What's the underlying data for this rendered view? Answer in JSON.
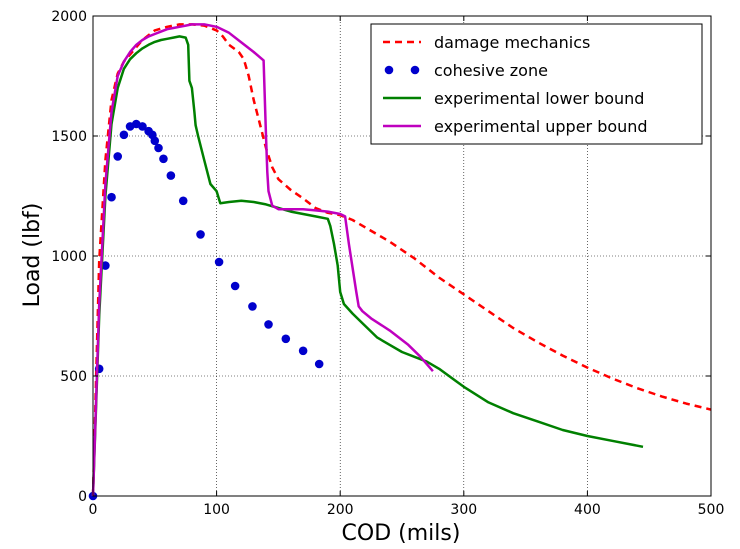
{
  "chart_data": {
    "type": "line",
    "xlabel": "COD (mils)",
    "ylabel": "Load (lbf)",
    "xlim": [
      0,
      500
    ],
    "ylim": [
      0,
      2000
    ],
    "xticks": [
      0,
      100,
      200,
      300,
      400,
      500
    ],
    "yticks": [
      0,
      500,
      1000,
      1500,
      2000
    ],
    "grid": true,
    "legend_position": "top-right",
    "series": [
      {
        "name": "damage mechanics",
        "style": "dashed",
        "marker": "none",
        "color": "#ff0000",
        "x": [
          0,
          5,
          10,
          15,
          20,
          25,
          30,
          40,
          50,
          60,
          70,
          80,
          90,
          100,
          105,
          110,
          118,
          122,
          126,
          130,
          135,
          140,
          145,
          150,
          160,
          170,
          180,
          190,
          200,
          210,
          220,
          240,
          260,
          280,
          300,
          320,
          340,
          360,
          380,
          400,
          420,
          440,
          460,
          480,
          500
        ],
        "y": [
          0,
          980,
          1400,
          1650,
          1760,
          1810,
          1840,
          1900,
          1940,
          1955,
          1965,
          1965,
          1960,
          1940,
          1915,
          1880,
          1850,
          1820,
          1750,
          1650,
          1550,
          1450,
          1370,
          1320,
          1275,
          1240,
          1200,
          1180,
          1170,
          1150,
          1120,
          1060,
          990,
          910,
          840,
          770,
          700,
          640,
          585,
          535,
          490,
          450,
          415,
          385,
          360
        ]
      },
      {
        "name": "cohesive zone",
        "style": "none",
        "marker": "circle",
        "color": "#0000cc",
        "x": [
          0,
          5,
          10,
          15,
          20,
          25,
          30,
          35,
          40,
          45,
          48,
          50,
          53,
          57,
          63,
          73,
          87,
          102,
          115,
          129,
          142,
          156,
          170,
          183
        ],
        "y": [
          0,
          530,
          960,
          1245,
          1415,
          1505,
          1540,
          1550,
          1540,
          1520,
          1505,
          1480,
          1450,
          1405,
          1335,
          1230,
          1090,
          975,
          875,
          790,
          715,
          655,
          605,
          550
        ]
      },
      {
        "name": "experimental lower bound",
        "style": "solid",
        "marker": "none",
        "color": "#008000",
        "x": [
          0,
          5,
          10,
          15,
          20,
          25,
          30,
          35,
          40,
          45,
          50,
          55,
          60,
          65,
          70,
          75,
          77,
          78,
          80,
          82,
          83,
          85,
          90,
          95,
          100,
          103,
          110,
          120,
          130,
          140,
          150,
          160,
          170,
          180,
          190,
          192,
          195,
          198,
          200,
          203,
          210,
          220,
          230,
          240,
          250,
          260,
          270,
          280,
          300,
          320,
          340,
          360,
          380,
          400,
          420,
          445
        ],
        "y": [
          0,
          750,
          1250,
          1550,
          1700,
          1780,
          1820,
          1845,
          1865,
          1880,
          1892,
          1900,
          1905,
          1910,
          1915,
          1910,
          1880,
          1730,
          1700,
          1600,
          1545,
          1500,
          1400,
          1300,
          1270,
          1220,
          1225,
          1230,
          1225,
          1215,
          1200,
          1185,
          1175,
          1165,
          1155,
          1125,
          1050,
          960,
          850,
          800,
          760,
          710,
          660,
          630,
          600,
          580,
          560,
          530,
          455,
          390,
          345,
          310,
          275,
          250,
          230,
          205
        ]
      },
      {
        "name": "experimental upper bound",
        "style": "solid",
        "marker": "none",
        "color": "#bf00bf",
        "x": [
          0,
          5,
          10,
          15,
          20,
          25,
          30,
          35,
          40,
          45,
          50,
          55,
          60,
          65,
          70,
          75,
          80,
          85,
          90,
          100,
          110,
          120,
          130,
          138,
          140,
          141,
          142,
          145,
          150,
          160,
          170,
          180,
          190,
          200,
          204,
          207,
          210,
          213,
          215,
          218,
          225,
          240,
          255,
          265,
          275
        ],
        "y": [
          0,
          800,
          1300,
          1600,
          1750,
          1810,
          1850,
          1880,
          1900,
          1915,
          1925,
          1935,
          1945,
          1950,
          1955,
          1960,
          1965,
          1965,
          1965,
          1955,
          1930,
          1890,
          1850,
          1815,
          1500,
          1350,
          1270,
          1210,
          1195,
          1195,
          1195,
          1190,
          1185,
          1175,
          1165,
          1050,
          950,
          850,
          790,
          770,
          740,
          690,
          630,
          580,
          520
        ]
      }
    ]
  }
}
